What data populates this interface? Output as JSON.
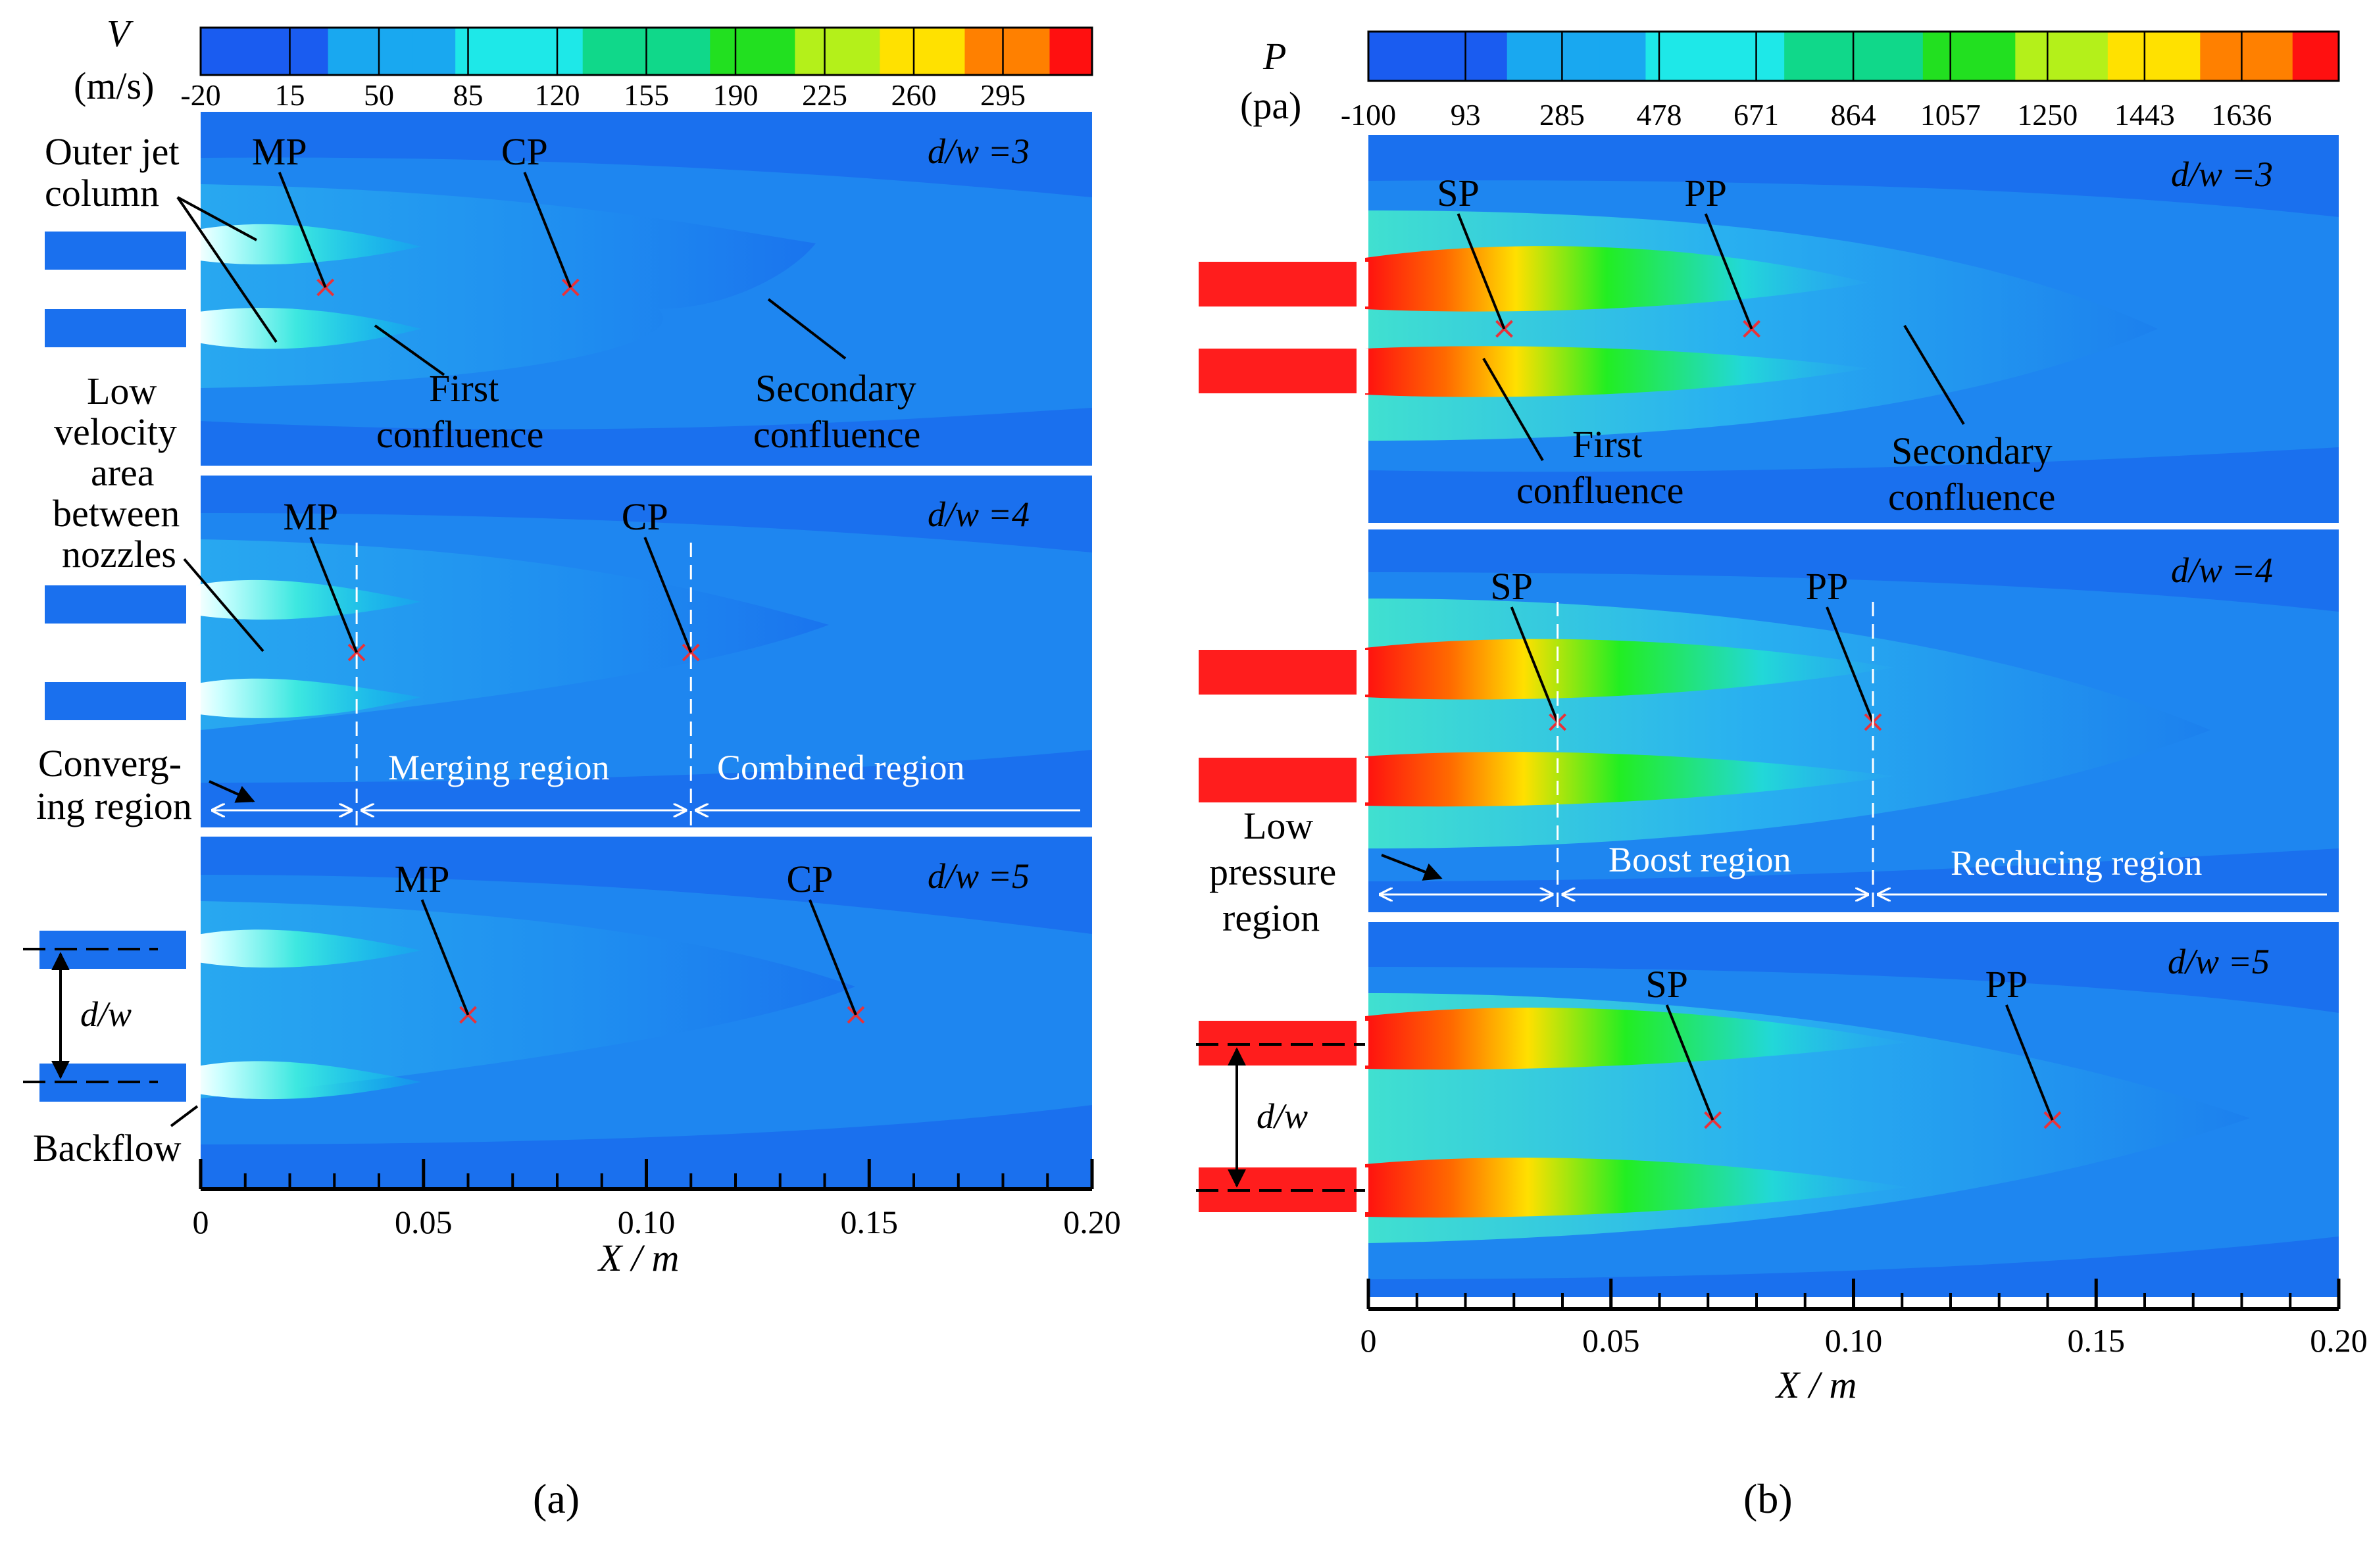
{
  "chart_data": [
    {
      "type": "contour",
      "panel": "a",
      "caption": "(a)",
      "quantity": {
        "symbol": "V",
        "unit": "(m/s)"
      },
      "colorbar_ticks": [
        "-20",
        "15",
        "50",
        "85",
        "120",
        "155",
        "190",
        "225",
        "260",
        "295"
      ],
      "colorbar_range": [
        -20,
        330
      ],
      "xlabel": "X / m",
      "xticks": [
        "0",
        "0.05",
        "0.10",
        "0.15",
        "0.20"
      ],
      "xlim": [
        0,
        0.2
      ],
      "rows": [
        {
          "label": "d/w =3",
          "points": [
            {
              "name": "MP",
              "x": 0.028
            },
            {
              "name": "CP",
              "x": 0.083
            }
          ]
        },
        {
          "label": "d/w =4",
          "points": [
            {
              "name": "MP",
              "x": 0.035
            },
            {
              "name": "CP",
              "x": 0.11
            }
          ]
        },
        {
          "label": "d/w =5",
          "points": [
            {
              "name": "MP",
              "x": 0.06
            },
            {
              "name": "CP",
              "x": 0.147
            }
          ]
        }
      ],
      "annotations": {
        "outer_jet": [
          "Outer jet",
          "column"
        ],
        "low_velocity": [
          "Low",
          "velocity",
          "area",
          "between",
          "nozzles"
        ],
        "first_confluence": [
          "First",
          "confluence"
        ],
        "secondary_confluence": [
          "Secondary",
          "confluence"
        ],
        "converging": [
          "Converg-",
          "ing region"
        ],
        "merging": "Merging region",
        "combined": "Combined region",
        "dw": "d/w",
        "backflow": "Backflow"
      }
    },
    {
      "type": "contour",
      "panel": "b",
      "caption": "(b)",
      "quantity": {
        "symbol": "P",
        "unit": "(pa)"
      },
      "colorbar_ticks": [
        "-100",
        "93",
        "285",
        "478",
        "671",
        "864",
        "1057",
        "1250",
        "1443",
        "1636"
      ],
      "colorbar_range": [
        -100,
        1829
      ],
      "xlabel": "X / m",
      "xticks": [
        "0",
        "0.05",
        "0.10",
        "0.15",
        "0.20"
      ],
      "xlim": [
        0,
        0.2
      ],
      "rows": [
        {
          "label": "d/w =3",
          "points": [
            {
              "name": "SP",
              "x": 0.028
            },
            {
              "name": "PP",
              "x": 0.079
            }
          ]
        },
        {
          "label": "d/w =4",
          "points": [
            {
              "name": "SP",
              "x": 0.039
            },
            {
              "name": "PP",
              "x": 0.104
            }
          ]
        },
        {
          "label": "d/w =5",
          "points": [
            {
              "name": "SP",
              "x": 0.071
            },
            {
              "name": "PP",
              "x": 0.141
            }
          ]
        }
      ],
      "annotations": {
        "first_confluence": [
          "First",
          "confluence"
        ],
        "secondary_confluence": [
          "Secondary",
          "confluence"
        ],
        "low_pressure": [
          "Low",
          "pressure",
          "region"
        ],
        "boost": "Boost region",
        "reducing": "Recducing  region",
        "dw": "d/w"
      }
    }
  ]
}
